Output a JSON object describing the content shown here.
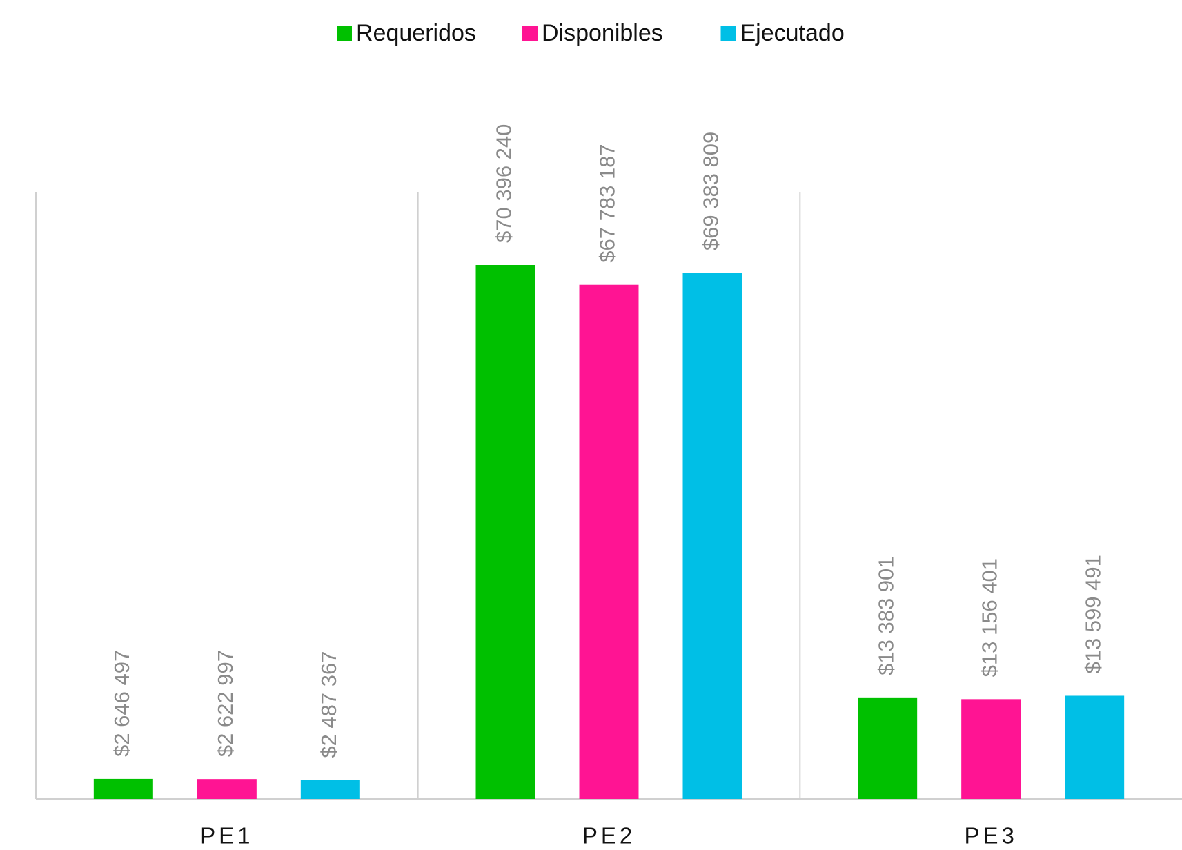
{
  "chart_data": {
    "type": "bar",
    "categories": [
      "PE1",
      "PE2",
      "PE3"
    ],
    "series": [
      {
        "name": "Requeridos",
        "color": "#00c000",
        "values": [
          2646497,
          70396240,
          13383901
        ],
        "value_labels": [
          "$2 646 497",
          "$70 396 240",
          "$13 383 901"
        ]
      },
      {
        "name": "Disponibles",
        "color": "#ff1493",
        "values": [
          2622997,
          67783187,
          13156401
        ],
        "value_labels": [
          "$2 622 997",
          "$67 783 187",
          "$13 156 401"
        ]
      },
      {
        "name": "Ejecutado",
        "color": "#00bfe6",
        "values": [
          2487367,
          69383809,
          13599491
        ],
        "value_labels": [
          "$2 487 367",
          "$69 383 809",
          "$13 599 491"
        ]
      }
    ],
    "legend": "top"
  }
}
